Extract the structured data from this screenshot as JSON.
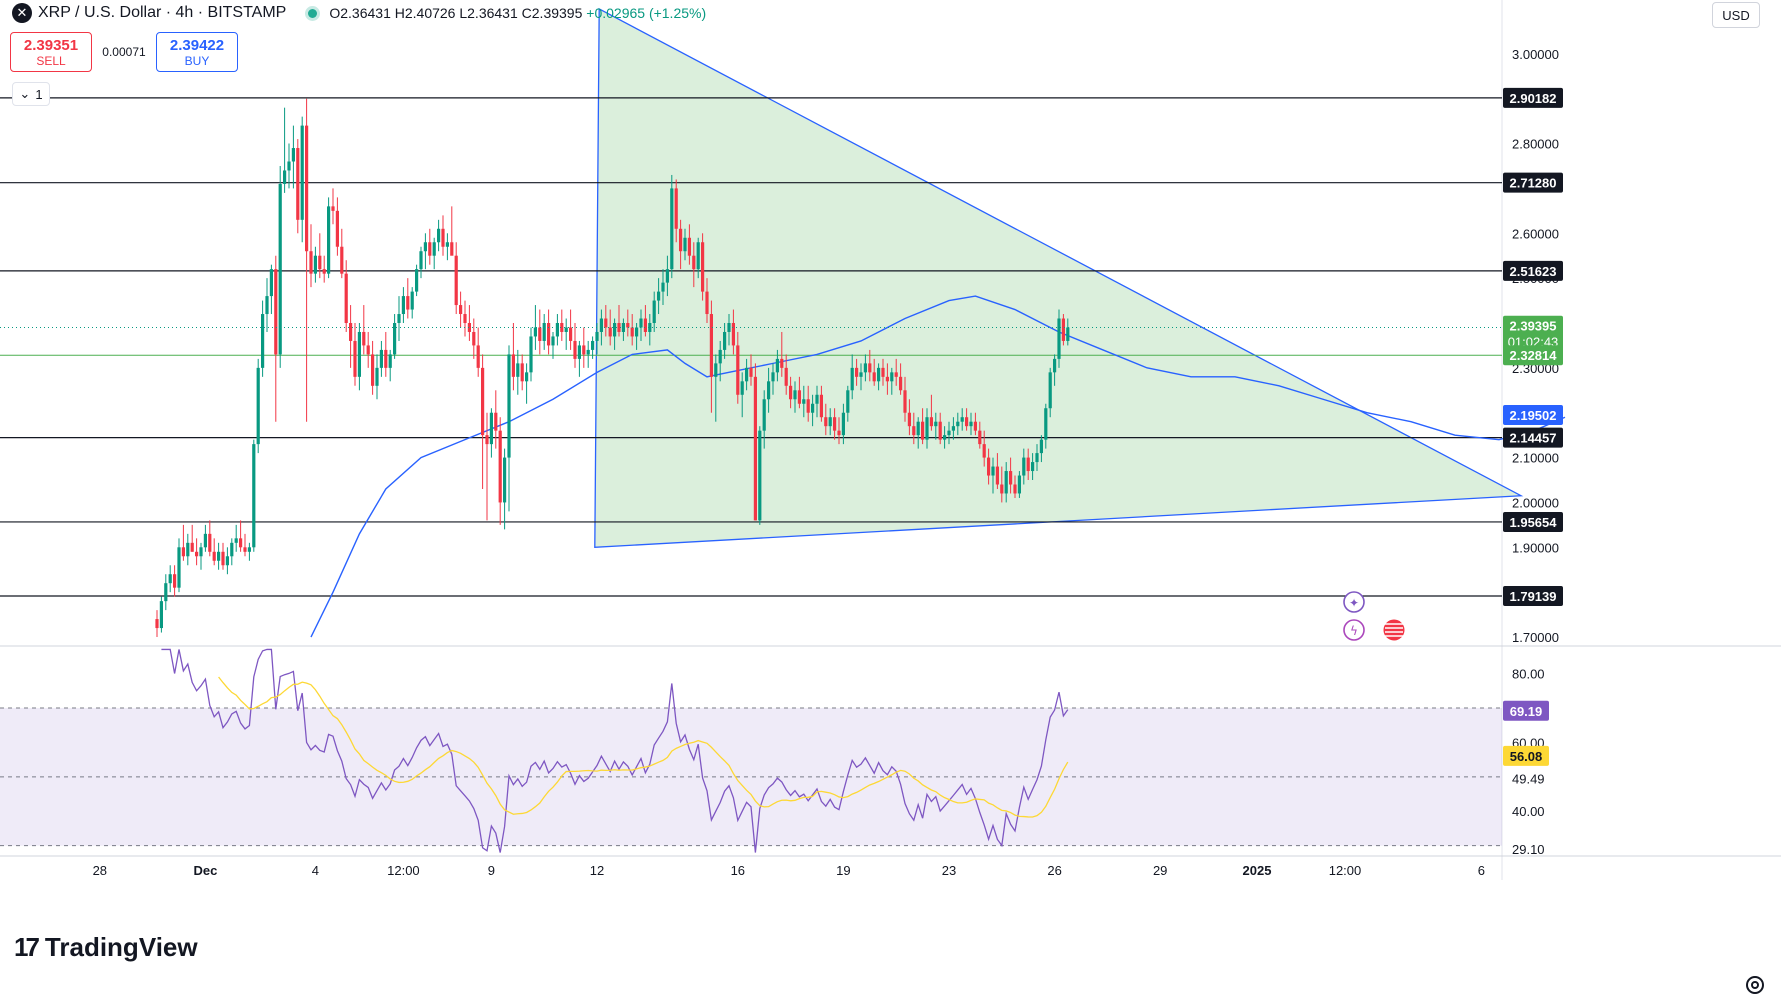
{
  "header": {
    "symbol": "XRP / U.S. Dollar · 4h · BITSTAMP",
    "open": "O2.36431",
    "high": "H2.40726",
    "low": "L2.36431",
    "close": "C2.39395",
    "change": "+0.02965 (+1.25%)"
  },
  "trade": {
    "sell_price": "2.39351",
    "sell_label": "SELL",
    "spread": "0.00071",
    "buy_price": "2.39422",
    "buy_label": "BUY"
  },
  "collapse_label": "1",
  "currency": "USD",
  "branding": "TradingView",
  "colors": {
    "up": "#089981",
    "down": "#f23645",
    "sma": "#2962ff",
    "triangle_fill": "#c8e6c9",
    "rsi": "#7e57c2",
    "rsi_ma": "#fdd835",
    "level_line": "#131722"
  },
  "chart_data": {
    "type": "candlestick",
    "timeframe": "4h",
    "y_range": [
      1.68,
      3.12
    ],
    "price_axis_ticks": [
      "3.00000",
      "2.80000",
      "2.60000",
      "2.50000",
      "2.30000",
      "2.10000",
      "2.00000",
      "1.90000",
      "1.70000"
    ],
    "x_axis_labels": [
      "28",
      "Dec",
      "4",
      "12:00",
      "9",
      "12",
      "16",
      "19",
      "23",
      "26",
      "29",
      "2025",
      "12:00",
      "6"
    ],
    "horizontal_levels": [
      2.90182,
      2.7128,
      2.51623,
      2.14457,
      1.95654,
      1.79139
    ],
    "price_labels": [
      {
        "value": 2.90182,
        "text": "2.90182",
        "style": "black"
      },
      {
        "value": 2.7128,
        "text": "2.71280",
        "style": "black"
      },
      {
        "value": 2.51623,
        "text": "2.51623",
        "style": "black"
      },
      {
        "value": 2.39395,
        "text": "2.39395",
        "sub": "01:02:43",
        "style": "green"
      },
      {
        "value": 2.32814,
        "text": "2.32814",
        "style": "green"
      },
      {
        "value": 2.19502,
        "text": "2.19502",
        "style": "blue"
      },
      {
        "value": 2.14457,
        "text": "2.14457",
        "style": "black"
      },
      {
        "value": 1.95654,
        "text": "1.95654",
        "style": "black"
      },
      {
        "value": 1.79139,
        "text": "1.79139",
        "style": "black"
      }
    ],
    "triangle_pattern": [
      {
        "bar": 100.5,
        "price": 3.1
      },
      {
        "bar": 99.5,
        "price": 1.9
      },
      {
        "bar": 310,
        "price": 2.015
      }
    ],
    "candles": [
      [
        1.74,
        1.76,
        1.7,
        1.72
      ],
      [
        1.72,
        1.79,
        1.71,
        1.78
      ],
      [
        1.78,
        1.84,
        1.76,
        1.82
      ],
      [
        1.82,
        1.86,
        1.8,
        1.84
      ],
      [
        1.84,
        1.86,
        1.79,
        1.81
      ],
      [
        1.81,
        1.92,
        1.8,
        1.9
      ],
      [
        1.9,
        1.95,
        1.87,
        1.88
      ],
      [
        1.88,
        1.93,
        1.86,
        1.91
      ],
      [
        1.91,
        1.95,
        1.89,
        1.89
      ],
      [
        1.89,
        1.92,
        1.86,
        1.88
      ],
      [
        1.88,
        1.91,
        1.85,
        1.9
      ],
      [
        1.9,
        1.95,
        1.89,
        1.93
      ],
      [
        1.93,
        1.96,
        1.88,
        1.89
      ],
      [
        1.89,
        1.92,
        1.86,
        1.87
      ],
      [
        1.87,
        1.91,
        1.85,
        1.89
      ],
      [
        1.89,
        1.91,
        1.85,
        1.86
      ],
      [
        1.86,
        1.9,
        1.84,
        1.88
      ],
      [
        1.88,
        1.92,
        1.86,
        1.91
      ],
      [
        1.91,
        1.95,
        1.89,
        1.92
      ],
      [
        1.92,
        1.96,
        1.89,
        1.9
      ],
      [
        1.9,
        1.93,
        1.88,
        1.89
      ],
      [
        1.89,
        1.91,
        1.87,
        1.9
      ],
      [
        1.9,
        2.14,
        1.89,
        2.13
      ],
      [
        2.13,
        2.32,
        2.11,
        2.3
      ],
      [
        2.3,
        2.45,
        2.28,
        2.42
      ],
      [
        2.42,
        2.5,
        2.38,
        2.46
      ],
      [
        2.46,
        2.53,
        2.42,
        2.52
      ],
      [
        2.52,
        2.55,
        2.18,
        2.33
      ],
      [
        2.33,
        2.75,
        2.3,
        2.71
      ],
      [
        2.71,
        2.88,
        2.69,
        2.74
      ],
      [
        2.74,
        2.8,
        2.7,
        2.76
      ],
      [
        2.76,
        2.84,
        2.7,
        2.79
      ],
      [
        2.79,
        2.81,
        2.6,
        2.63
      ],
      [
        2.63,
        2.86,
        2.58,
        2.84
      ],
      [
        2.84,
        2.9,
        2.18,
        2.56
      ],
      [
        2.56,
        2.62,
        2.48,
        2.51
      ],
      [
        2.51,
        2.57,
        2.49,
        2.55
      ],
      [
        2.55,
        2.6,
        2.5,
        2.52
      ],
      [
        2.52,
        2.55,
        2.49,
        2.51
      ],
      [
        2.51,
        2.68,
        2.5,
        2.66
      ],
      [
        2.66,
        2.7,
        2.62,
        2.65
      ],
      [
        2.65,
        2.68,
        2.55,
        2.57
      ],
      [
        2.57,
        2.61,
        2.5,
        2.51
      ],
      [
        2.51,
        2.54,
        2.38,
        2.4
      ],
      [
        2.4,
        2.44,
        2.3,
        2.36
      ],
      [
        2.36,
        2.4,
        2.26,
        2.28
      ],
      [
        2.28,
        2.4,
        2.25,
        2.38
      ],
      [
        2.38,
        2.44,
        2.33,
        2.35
      ],
      [
        2.35,
        2.38,
        2.3,
        2.33
      ],
      [
        2.33,
        2.36,
        2.24,
        2.26
      ],
      [
        2.26,
        2.33,
        2.23,
        2.3
      ],
      [
        2.3,
        2.36,
        2.28,
        2.34
      ],
      [
        2.34,
        2.38,
        2.28,
        2.3
      ],
      [
        2.3,
        2.34,
        2.27,
        2.33
      ],
      [
        2.33,
        2.42,
        2.32,
        2.4
      ],
      [
        2.4,
        2.46,
        2.36,
        2.42
      ],
      [
        2.42,
        2.48,
        2.4,
        2.46
      ],
      [
        2.46,
        2.5,
        2.41,
        2.43
      ],
      [
        2.43,
        2.48,
        2.41,
        2.47
      ],
      [
        2.47,
        2.53,
        2.46,
        2.52
      ],
      [
        2.52,
        2.57,
        2.5,
        2.56
      ],
      [
        2.56,
        2.6,
        2.52,
        2.58
      ],
      [
        2.58,
        2.61,
        2.53,
        2.55
      ],
      [
        2.55,
        2.59,
        2.52,
        2.58
      ],
      [
        2.58,
        2.63,
        2.56,
        2.61
      ],
      [
        2.61,
        2.64,
        2.55,
        2.57
      ],
      [
        2.57,
        2.6,
        2.54,
        2.58
      ],
      [
        2.58,
        2.66,
        2.56,
        2.55
      ],
      [
        2.55,
        2.58,
        2.42,
        2.44
      ],
      [
        2.44,
        2.47,
        2.39,
        2.42
      ],
      [
        2.42,
        2.45,
        2.37,
        2.4
      ],
      [
        2.4,
        2.44,
        2.36,
        2.38
      ],
      [
        2.38,
        2.41,
        2.32,
        2.35
      ],
      [
        2.35,
        2.39,
        2.28,
        2.3
      ],
      [
        2.3,
        2.33,
        2.03,
        2.15
      ],
      [
        2.15,
        2.2,
        1.96,
        2.13
      ],
      [
        2.13,
        2.21,
        2.1,
        2.2
      ],
      [
        2.2,
        2.25,
        2.12,
        2.16
      ],
      [
        2.16,
        2.19,
        1.95,
        2.0
      ],
      [
        2.0,
        2.12,
        1.94,
        2.1
      ],
      [
        2.1,
        2.35,
        1.98,
        2.33
      ],
      [
        2.33,
        2.4,
        2.25,
        2.28
      ],
      [
        2.28,
        2.34,
        2.24,
        2.31
      ],
      [
        2.31,
        2.33,
        2.25,
        2.27
      ],
      [
        2.27,
        2.31,
        2.22,
        2.29
      ],
      [
        2.29,
        2.39,
        2.27,
        2.37
      ],
      [
        2.37,
        2.44,
        2.34,
        2.39
      ],
      [
        2.39,
        2.43,
        2.33,
        2.36
      ],
      [
        2.36,
        2.42,
        2.34,
        2.4
      ],
      [
        2.4,
        2.43,
        2.33,
        2.35
      ],
      [
        2.35,
        2.38,
        2.32,
        2.37
      ],
      [
        2.37,
        2.42,
        2.35,
        2.4
      ],
      [
        2.4,
        2.43,
        2.36,
        2.38
      ],
      [
        2.38,
        2.41,
        2.34,
        2.39
      ],
      [
        2.39,
        2.43,
        2.34,
        2.36
      ],
      [
        2.36,
        2.4,
        2.3,
        2.32
      ],
      [
        2.32,
        2.36,
        2.28,
        2.35
      ],
      [
        2.35,
        2.39,
        2.3,
        2.33
      ],
      [
        2.33,
        2.36,
        2.3,
        2.34
      ],
      [
        2.34,
        2.37,
        2.32,
        2.36
      ],
      [
        2.36,
        2.4,
        2.33,
        2.38
      ],
      [
        2.38,
        2.43,
        2.35,
        2.41
      ],
      [
        2.41,
        2.44,
        2.37,
        2.39
      ],
      [
        2.39,
        2.43,
        2.35,
        2.37
      ],
      [
        2.37,
        2.41,
        2.34,
        2.4
      ],
      [
        2.4,
        2.44,
        2.37,
        2.38
      ],
      [
        2.38,
        2.41,
        2.36,
        2.4
      ],
      [
        2.4,
        2.43,
        2.37,
        2.39
      ],
      [
        2.39,
        2.42,
        2.35,
        2.37
      ],
      [
        2.37,
        2.4,
        2.34,
        2.39
      ],
      [
        2.39,
        2.43,
        2.36,
        2.41
      ],
      [
        2.41,
        2.44,
        2.37,
        2.38
      ],
      [
        2.38,
        2.42,
        2.35,
        2.4
      ],
      [
        2.4,
        2.47,
        2.38,
        2.45
      ],
      [
        2.45,
        2.5,
        2.42,
        2.47
      ],
      [
        2.47,
        2.52,
        2.44,
        2.49
      ],
      [
        2.49,
        2.55,
        2.46,
        2.52
      ],
      [
        2.52,
        2.73,
        2.5,
        2.7
      ],
      [
        2.7,
        2.72,
        2.58,
        2.61
      ],
      [
        2.61,
        2.63,
        2.52,
        2.56
      ],
      [
        2.56,
        2.61,
        2.54,
        2.59
      ],
      [
        2.59,
        2.62,
        2.53,
        2.55
      ],
      [
        2.55,
        2.58,
        2.48,
        2.52
      ],
      [
        2.52,
        2.59,
        2.5,
        2.58
      ],
      [
        2.58,
        2.6,
        2.45,
        2.47
      ],
      [
        2.47,
        2.5,
        2.4,
        2.42
      ],
      [
        2.42,
        2.45,
        2.2,
        2.28
      ],
      [
        2.28,
        2.33,
        2.18,
        2.31
      ],
      [
        2.31,
        2.36,
        2.27,
        2.34
      ],
      [
        2.34,
        2.4,
        2.32,
        2.38
      ],
      [
        2.38,
        2.42,
        2.35,
        2.4
      ],
      [
        2.4,
        2.43,
        2.33,
        2.35
      ],
      [
        2.35,
        2.38,
        2.22,
        2.24
      ],
      [
        2.24,
        2.29,
        2.19,
        2.27
      ],
      [
        2.27,
        2.32,
        2.25,
        2.3
      ],
      [
        2.3,
        2.33,
        2.26,
        2.28
      ],
      [
        2.28,
        2.31,
        1.96,
        1.96
      ],
      [
        1.96,
        2.17,
        1.95,
        2.16
      ],
      [
        2.16,
        2.25,
        2.12,
        2.23
      ],
      [
        2.23,
        2.3,
        2.2,
        2.27
      ],
      [
        2.27,
        2.31,
        2.24,
        2.29
      ],
      [
        2.29,
        2.34,
        2.27,
        2.32
      ],
      [
        2.32,
        2.38,
        2.28,
        2.3
      ],
      [
        2.3,
        2.33,
        2.24,
        2.26
      ],
      [
        2.26,
        2.28,
        2.21,
        2.23
      ],
      [
        2.23,
        2.27,
        2.2,
        2.25
      ],
      [
        2.25,
        2.28,
        2.21,
        2.22
      ],
      [
        2.22,
        2.26,
        2.19,
        2.23
      ],
      [
        2.23,
        2.26,
        2.18,
        2.2
      ],
      [
        2.2,
        2.24,
        2.17,
        2.22
      ],
      [
        2.22,
        2.26,
        2.19,
        2.24
      ],
      [
        2.24,
        2.26,
        2.18,
        2.19
      ],
      [
        2.19,
        2.22,
        2.15,
        2.17
      ],
      [
        2.17,
        2.21,
        2.15,
        2.19
      ],
      [
        2.19,
        2.21,
        2.14,
        2.16
      ],
      [
        2.16,
        2.19,
        2.13,
        2.15
      ],
      [
        2.15,
        2.22,
        2.13,
        2.2
      ],
      [
        2.2,
        2.26,
        2.18,
        2.25
      ],
      [
        2.25,
        2.33,
        2.23,
        2.3
      ],
      [
        2.3,
        2.32,
        2.26,
        2.28
      ],
      [
        2.28,
        2.31,
        2.25,
        2.29
      ],
      [
        2.29,
        2.33,
        2.27,
        2.31
      ],
      [
        2.31,
        2.34,
        2.27,
        2.29
      ],
      [
        2.29,
        2.32,
        2.26,
        2.27
      ],
      [
        2.27,
        2.31,
        2.25,
        2.3
      ],
      [
        2.3,
        2.32,
        2.26,
        2.28
      ],
      [
        2.28,
        2.31,
        2.24,
        2.27
      ],
      [
        2.27,
        2.3,
        2.24,
        2.29
      ],
      [
        2.29,
        2.32,
        2.26,
        2.28
      ],
      [
        2.28,
        2.31,
        2.24,
        2.25
      ],
      [
        2.25,
        2.28,
        2.18,
        2.2
      ],
      [
        2.2,
        2.23,
        2.15,
        2.17
      ],
      [
        2.17,
        2.2,
        2.13,
        2.15
      ],
      [
        2.15,
        2.19,
        2.12,
        2.18
      ],
      [
        2.18,
        2.21,
        2.13,
        2.14
      ],
      [
        2.14,
        2.21,
        2.12,
        2.19
      ],
      [
        2.19,
        2.24,
        2.16,
        2.17
      ],
      [
        2.17,
        2.2,
        2.14,
        2.18
      ],
      [
        2.18,
        2.2,
        2.13,
        2.14
      ],
      [
        2.14,
        2.17,
        2.12,
        2.15
      ],
      [
        2.15,
        2.18,
        2.13,
        2.16
      ],
      [
        2.16,
        2.19,
        2.14,
        2.17
      ],
      [
        2.17,
        2.2,
        2.15,
        2.18
      ],
      [
        2.18,
        2.21,
        2.16,
        2.19
      ],
      [
        2.19,
        2.21,
        2.16,
        2.17
      ],
      [
        2.17,
        2.2,
        2.15,
        2.18
      ],
      [
        2.18,
        2.2,
        2.15,
        2.16
      ],
      [
        2.16,
        2.18,
        2.12,
        2.13
      ],
      [
        2.13,
        2.16,
        2.08,
        2.1
      ],
      [
        2.1,
        2.12,
        2.04,
        2.06
      ],
      [
        2.06,
        2.1,
        2.02,
        2.08
      ],
      [
        2.08,
        2.11,
        2.03,
        2.04
      ],
      [
        2.04,
        2.08,
        2.0,
        2.02
      ],
      [
        2.02,
        2.09,
        2.0,
        2.07
      ],
      [
        2.07,
        2.1,
        2.02,
        2.04
      ],
      [
        2.04,
        2.06,
        2.01,
        2.02
      ],
      [
        2.02,
        2.07,
        2.01,
        2.06
      ],
      [
        2.06,
        2.12,
        2.04,
        2.1
      ],
      [
        2.1,
        2.12,
        2.05,
        2.07
      ],
      [
        2.07,
        2.11,
        2.05,
        2.09
      ],
      [
        2.09,
        2.13,
        2.07,
        2.11
      ],
      [
        2.11,
        2.15,
        2.09,
        2.14
      ],
      [
        2.14,
        2.22,
        2.12,
        2.21
      ],
      [
        2.21,
        2.3,
        2.19,
        2.29
      ],
      [
        2.29,
        2.33,
        2.26,
        2.32
      ],
      [
        2.32,
        2.43,
        2.3,
        2.41
      ],
      [
        2.41,
        2.42,
        2.35,
        2.36
      ],
      [
        2.36,
        2.41,
        2.35,
        2.39
      ]
    ],
    "sma": [
      [
        35,
        1.7
      ],
      [
        40,
        1.8
      ],
      [
        46,
        1.93
      ],
      [
        52,
        2.03
      ],
      [
        60,
        2.1
      ],
      [
        70,
        2.14
      ],
      [
        80,
        2.18
      ],
      [
        90,
        2.23
      ],
      [
        100,
        2.29
      ],
      [
        108,
        2.33
      ],
      [
        116,
        2.34
      ],
      [
        120,
        2.31
      ],
      [
        125,
        2.28
      ],
      [
        130,
        2.29
      ],
      [
        140,
        2.31
      ],
      [
        150,
        2.33
      ],
      [
        160,
        2.36
      ],
      [
        170,
        2.41
      ],
      [
        180,
        2.45
      ],
      [
        186,
        2.46
      ],
      [
        195,
        2.43
      ],
      [
        205,
        2.38
      ],
      [
        215,
        2.34
      ],
      [
        225,
        2.3
      ],
      [
        235,
        2.28
      ],
      [
        245,
        2.28
      ],
      [
        255,
        2.26
      ],
      [
        265,
        2.23
      ],
      [
        275,
        2.2
      ],
      [
        285,
        2.18
      ],
      [
        295,
        2.15
      ],
      [
        305,
        2.14
      ],
      [
        313,
        2.16
      ],
      [
        320,
        2.19
      ]
    ],
    "rsi_axis_ticks": [
      "80.00",
      "60.00",
      "49.49",
      "40.00",
      "29.10"
    ],
    "rsi_levels": {
      "upper": 70,
      "lower": 30,
      "band": [
        30,
        70
      ]
    },
    "rsi_labels": [
      {
        "value": 69.19,
        "text": "69.19",
        "color": "#7e57c2"
      },
      {
        "value": 56.08,
        "text": "56.08",
        "color": "#fdd835"
      }
    ],
    "rsi_range": [
      27,
      88
    ]
  }
}
